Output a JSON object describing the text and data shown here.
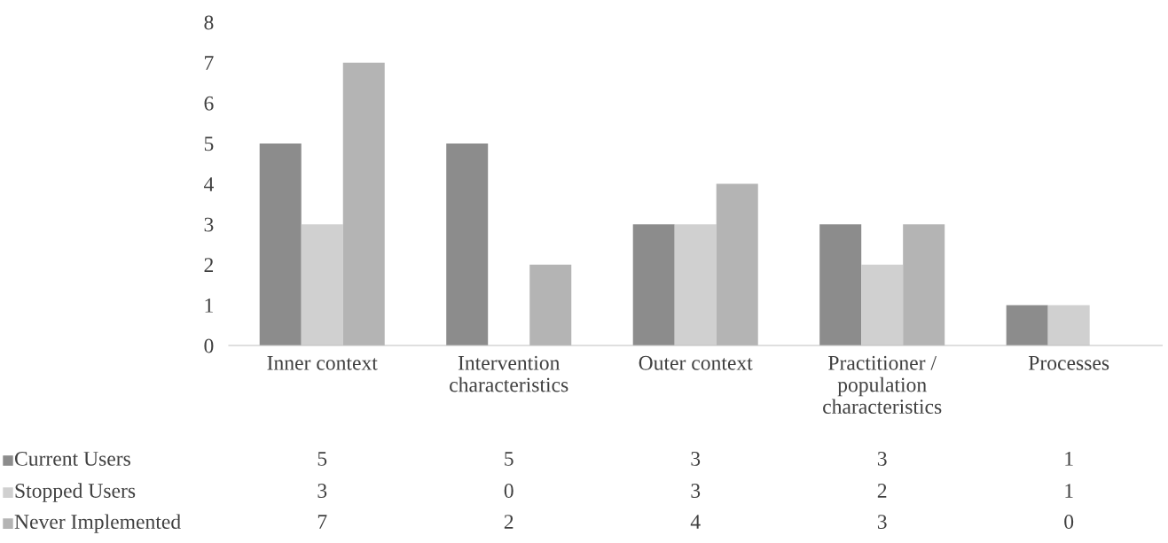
{
  "chart_data": {
    "type": "bar",
    "categories": [
      "Inner context",
      "Intervention\ncharacteristics",
      "Outer context",
      "Practitioner /\npopulation\ncharacteristics",
      "Processes"
    ],
    "series": [
      {
        "name": "Current Users",
        "color": "#8c8c8c",
        "values": [
          5,
          5,
          3,
          3,
          1
        ]
      },
      {
        "name": "Stopped Users",
        "color": "#d0d0d0",
        "values": [
          3,
          0,
          3,
          2,
          1
        ]
      },
      {
        "name": "Never Implemented",
        "color": "#b4b4b4",
        "values": [
          7,
          2,
          4,
          3,
          0
        ]
      }
    ],
    "ylim": [
      0,
      8
    ],
    "yticks": [
      0,
      1,
      2,
      3,
      4,
      5,
      6,
      7,
      8
    ],
    "grid": false,
    "legend": "bottom",
    "data_labels": true
  }
}
